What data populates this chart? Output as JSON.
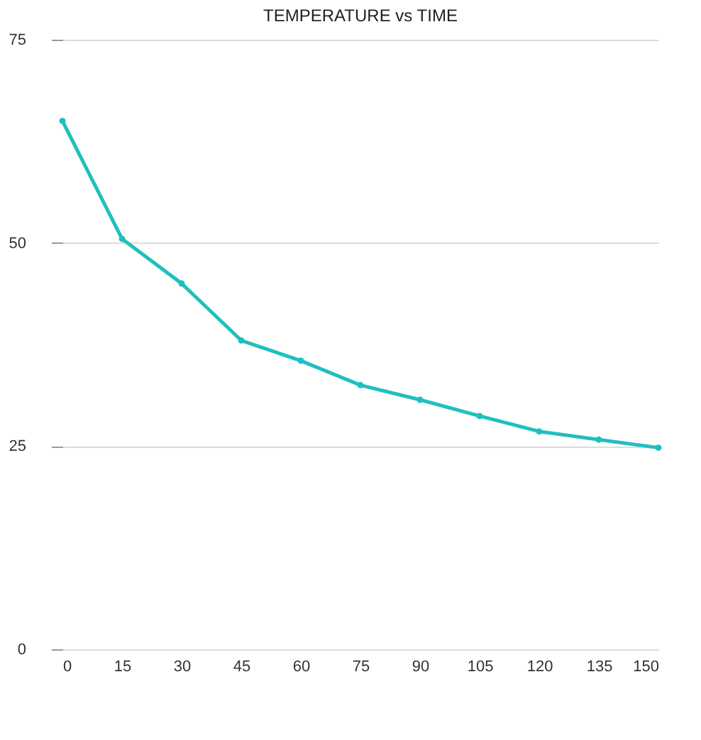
{
  "chart_data": {
    "type": "line",
    "title": "TEMPERATURE vs TIME",
    "x": [
      0,
      15,
      30,
      45,
      60,
      75,
      90,
      105,
      120,
      135,
      150
    ],
    "series": [
      {
        "color": "#20bfbf",
        "values": [
          65,
          50.5,
          45,
          38,
          35.5,
          32.5,
          30.7,
          28.7,
          26.8,
          25.8,
          24.8
        ]
      }
    ],
    "xlim": [
      0,
      150
    ],
    "xticks": [
      0,
      15,
      30,
      45,
      60,
      75,
      90,
      105,
      120,
      135,
      150
    ],
    "ylim": [
      0,
      75
    ],
    "yticks": [
      0,
      25,
      50,
      75
    ],
    "grid": "y",
    "marker": "circle",
    "line_style": "solid"
  }
}
